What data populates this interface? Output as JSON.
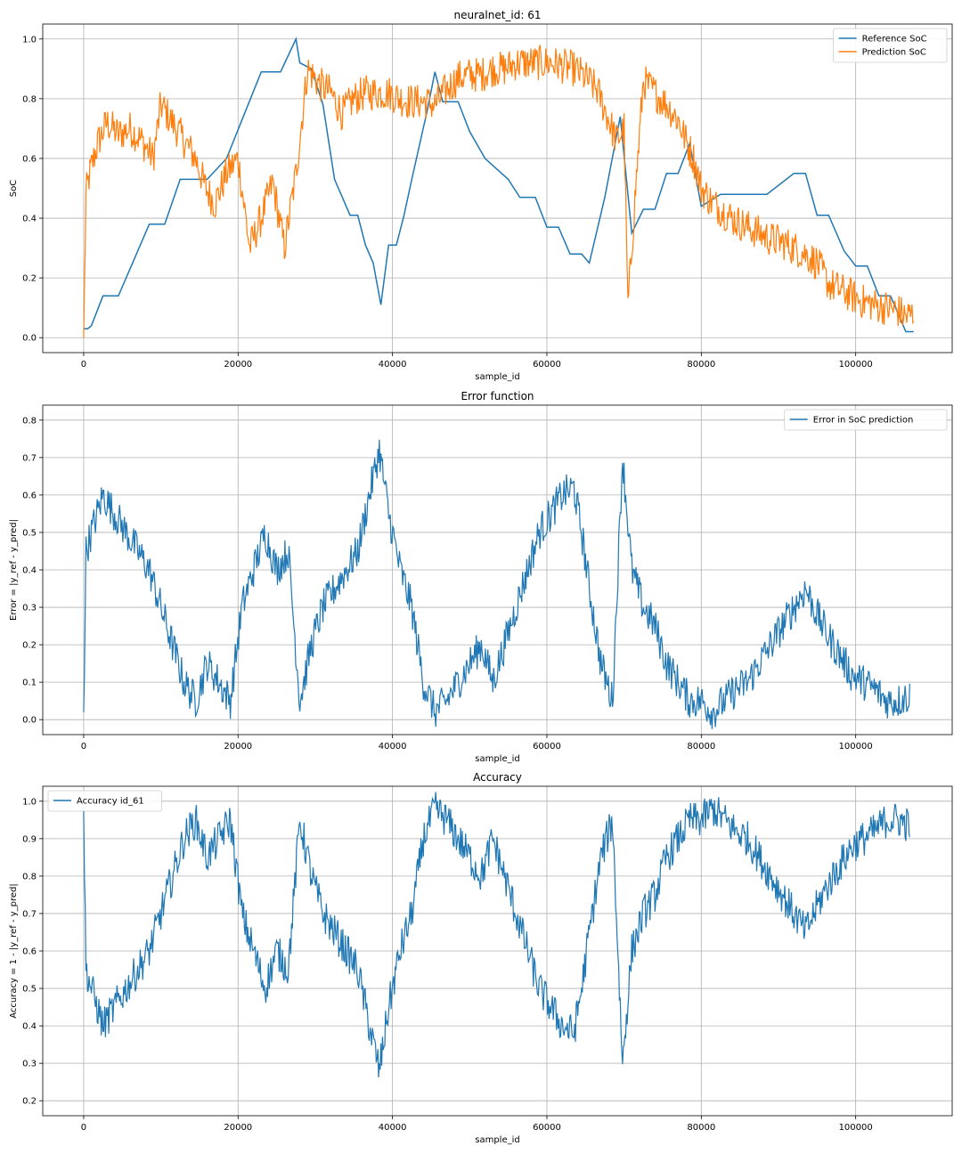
{
  "colors": {
    "reference": "#1f77b4",
    "prediction": "#ff7f0e",
    "grid": "#b0b0b0"
  },
  "chart_data": [
    {
      "type": "line",
      "title": "neuralnet_id: 61",
      "xlabel": "sample_id",
      "ylabel": "SoC",
      "xlim": [
        -5300,
        112500
      ],
      "ylim": [
        -0.05,
        1.05
      ],
      "xticks": [
        0,
        20000,
        40000,
        60000,
        80000,
        100000
      ],
      "xtick_labels": [
        "0",
        "20000",
        "40000",
        "60000",
        "80000",
        "100000"
      ],
      "yticks": [
        0.0,
        0.2,
        0.4,
        0.6,
        0.8,
        1.0
      ],
      "ytick_labels": [
        "0.0",
        "0.2",
        "0.4",
        "0.6",
        "0.8",
        "1.0"
      ],
      "grid": true,
      "legend": "top-right",
      "series": [
        {
          "name": "Reference SoC",
          "color": "#1f77b4",
          "x": [
            0,
            500,
            1000,
            2500,
            4500,
            8500,
            10500,
            12500,
            16000,
            18500,
            23000,
            25500,
            27500,
            28000,
            29500,
            31000,
            32500,
            34500,
            35500,
            36500,
            37500,
            38500,
            39500,
            40500,
            41500,
            42500,
            44500,
            45500,
            46500,
            48500,
            50000,
            52000,
            55000,
            56500,
            58500,
            60000,
            61500,
            63000,
            64500,
            65500,
            67500,
            69500,
            71000,
            72500,
            74000,
            75500,
            77000,
            78500,
            80000,
            82500,
            85500,
            88500,
            92000,
            93500,
            95000,
            96500,
            98500,
            100000,
            101500,
            103000,
            104500,
            105500,
            106500,
            107500
          ],
          "y": [
            0.03,
            0.03,
            0.04,
            0.14,
            0.14,
            0.38,
            0.38,
            0.53,
            0.53,
            0.6,
            0.89,
            0.89,
            1.0,
            0.92,
            0.9,
            0.78,
            0.53,
            0.41,
            0.41,
            0.31,
            0.25,
            0.11,
            0.31,
            0.31,
            0.41,
            0.53,
            0.76,
            0.89,
            0.79,
            0.79,
            0.69,
            0.6,
            0.53,
            0.47,
            0.47,
            0.37,
            0.37,
            0.28,
            0.28,
            0.25,
            0.47,
            0.74,
            0.35,
            0.43,
            0.43,
            0.55,
            0.55,
            0.65,
            0.44,
            0.48,
            0.48,
            0.48,
            0.55,
            0.55,
            0.41,
            0.41,
            0.29,
            0.24,
            0.24,
            0.14,
            0.14,
            0.08,
            0.02,
            0.02
          ]
        },
        {
          "name": "Prediction SoC",
          "color": "#ff7f0e",
          "x": [
            0,
            300,
            800,
            1800,
            3000,
            4500,
            6000,
            7500,
            9000,
            10000,
            11500,
            13000,
            14500,
            15800,
            17000,
            18500,
            20000,
            21500,
            23000,
            24500,
            26000,
            27500,
            29000,
            30500,
            32000,
            33500,
            35000,
            36500,
            38000,
            39500,
            41000,
            42500,
            44000,
            45500,
            47000,
            48500,
            50000,
            51500,
            53000,
            54500,
            56000,
            57500,
            59000,
            60500,
            62000,
            63500,
            65000,
            66500,
            68000,
            69000,
            70000,
            70500,
            71500,
            72500,
            74000,
            75500,
            77000,
            78000,
            79000,
            80000,
            81500,
            83000,
            84500,
            86000,
            87500,
            89000,
            90500,
            92000,
            93500,
            95000,
            96500,
            98000,
            99500,
            101000,
            102500,
            104000,
            105500,
            106500,
            107500
          ],
          "y": [
            0.0,
            0.48,
            0.55,
            0.65,
            0.72,
            0.68,
            0.7,
            0.66,
            0.6,
            0.78,
            0.72,
            0.66,
            0.6,
            0.5,
            0.45,
            0.55,
            0.6,
            0.3,
            0.4,
            0.52,
            0.3,
            0.55,
            0.9,
            0.85,
            0.82,
            0.75,
            0.8,
            0.82,
            0.82,
            0.82,
            0.8,
            0.79,
            0.79,
            0.78,
            0.83,
            0.87,
            0.88,
            0.88,
            0.9,
            0.9,
            0.92,
            0.92,
            0.92,
            0.92,
            0.91,
            0.9,
            0.87,
            0.83,
            0.73,
            0.66,
            0.7,
            0.1,
            0.5,
            0.86,
            0.82,
            0.78,
            0.73,
            0.66,
            0.6,
            0.5,
            0.45,
            0.42,
            0.39,
            0.37,
            0.35,
            0.33,
            0.32,
            0.3,
            0.28,
            0.25,
            0.18,
            0.16,
            0.14,
            0.12,
            0.11,
            0.1,
            0.09,
            0.07,
            0.08
          ]
        }
      ]
    },
    {
      "type": "line",
      "title": "Error function",
      "xlabel": "sample_id",
      "ylabel": "Error = |y_ref - y_pred|",
      "xlim": [
        -5300,
        112500
      ],
      "ylim": [
        -0.04,
        0.84
      ],
      "xticks": [
        0,
        20000,
        40000,
        60000,
        80000,
        100000
      ],
      "xtick_labels": [
        "0",
        "20000",
        "40000",
        "60000",
        "80000",
        "100000"
      ],
      "yticks": [
        0.0,
        0.1,
        0.2,
        0.3,
        0.4,
        0.5,
        0.6,
        0.7,
        0.8
      ],
      "ytick_labels": [
        "0.0",
        "0.1",
        "0.2",
        "0.3",
        "0.4",
        "0.5",
        "0.6",
        "0.7",
        "0.8"
      ],
      "grid": true,
      "legend": "top-right",
      "series": [
        {
          "name": "Error in SoC prediction",
          "color": "#1f77b4",
          "x": [
            0,
            300,
            1000,
            2500,
            4000,
            5500,
            7000,
            8500,
            10000,
            11500,
            13000,
            14500,
            16000,
            17500,
            19000,
            20500,
            22000,
            23500,
            25000,
            26500,
            28000,
            29500,
            31000,
            32500,
            34000,
            35500,
            37000,
            38300,
            39500,
            41000,
            42500,
            44000,
            45500,
            47000,
            48500,
            50000,
            51500,
            53000,
            54500,
            56000,
            57500,
            59000,
            60500,
            62000,
            63500,
            64500,
            65500,
            67000,
            68500,
            69800,
            71000,
            72500,
            74000,
            75500,
            77000,
            78500,
            80000,
            81500,
            83000,
            84500,
            86000,
            87500,
            89000,
            90500,
            92000,
            93500,
            95000,
            96500,
            98000,
            99500,
            101000,
            102500,
            104000,
            105500,
            106500,
            107000
          ],
          "y": [
            0.02,
            0.45,
            0.5,
            0.6,
            0.55,
            0.5,
            0.45,
            0.4,
            0.3,
            0.2,
            0.1,
            0.05,
            0.15,
            0.1,
            0.05,
            0.3,
            0.4,
            0.5,
            0.4,
            0.45,
            0.05,
            0.2,
            0.3,
            0.35,
            0.4,
            0.45,
            0.6,
            0.72,
            0.55,
            0.4,
            0.3,
            0.1,
            0.02,
            0.05,
            0.1,
            0.15,
            0.2,
            0.1,
            0.2,
            0.3,
            0.4,
            0.5,
            0.55,
            0.6,
            0.62,
            0.5,
            0.35,
            0.15,
            0.05,
            0.7,
            0.4,
            0.3,
            0.25,
            0.15,
            0.1,
            0.05,
            0.05,
            0.02,
            0.05,
            0.08,
            0.1,
            0.15,
            0.2,
            0.25,
            0.3,
            0.35,
            0.28,
            0.22,
            0.17,
            0.12,
            0.1,
            0.08,
            0.05,
            0.05,
            0.06,
            0.06
          ]
        }
      ]
    },
    {
      "type": "line",
      "title": "Accuracy",
      "xlabel": "sample_id",
      "ylabel": "Accuracy = 1 - |y_ref - y_pred|",
      "xlim": [
        -5300,
        112500
      ],
      "ylim": [
        0.16,
        1.04
      ],
      "xticks": [
        0,
        20000,
        40000,
        60000,
        80000,
        100000
      ],
      "xtick_labels": [
        "0",
        "20000",
        "40000",
        "60000",
        "80000",
        "100000"
      ],
      "yticks": [
        0.2,
        0.3,
        0.4,
        0.5,
        0.6,
        0.7,
        0.8,
        0.9,
        1.0
      ],
      "ytick_labels": [
        "0.2",
        "0.3",
        "0.4",
        "0.5",
        "0.6",
        "0.7",
        "0.8",
        "0.9",
        "1.0"
      ],
      "grid": true,
      "legend": "top-left",
      "series": [
        {
          "name": "Accuracy id_61",
          "color": "#1f77b4",
          "x": [
            0,
            300,
            1000,
            2500,
            4000,
            5500,
            7000,
            8500,
            10000,
            11500,
            13000,
            14500,
            16000,
            17500,
            19000,
            20500,
            22000,
            23500,
            25000,
            26500,
            28000,
            29500,
            31000,
            32500,
            34000,
            35500,
            37000,
            38300,
            39500,
            41000,
            42500,
            44000,
            45500,
            47000,
            48500,
            50000,
            51500,
            53000,
            54500,
            56000,
            57500,
            59000,
            60500,
            62000,
            63500,
            64500,
            65500,
            67000,
            68500,
            69800,
            71000,
            72500,
            74000,
            75500,
            77000,
            78500,
            80000,
            81500,
            83000,
            84500,
            86000,
            87500,
            89000,
            90500,
            92000,
            93500,
            95000,
            96500,
            98000,
            99500,
            101000,
            102500,
            104000,
            105500,
            106500,
            107000
          ],
          "y": [
            0.98,
            0.55,
            0.5,
            0.4,
            0.45,
            0.5,
            0.55,
            0.6,
            0.7,
            0.8,
            0.9,
            0.95,
            0.85,
            0.9,
            0.95,
            0.7,
            0.6,
            0.5,
            0.6,
            0.55,
            0.95,
            0.8,
            0.7,
            0.65,
            0.6,
            0.55,
            0.4,
            0.28,
            0.45,
            0.6,
            0.7,
            0.9,
            0.98,
            0.95,
            0.9,
            0.85,
            0.8,
            0.9,
            0.8,
            0.7,
            0.6,
            0.5,
            0.45,
            0.4,
            0.38,
            0.5,
            0.65,
            0.85,
            0.95,
            0.3,
            0.6,
            0.7,
            0.75,
            0.85,
            0.9,
            0.95,
            0.95,
            0.98,
            0.95,
            0.92,
            0.9,
            0.85,
            0.8,
            0.75,
            0.7,
            0.65,
            0.72,
            0.78,
            0.83,
            0.88,
            0.9,
            0.92,
            0.95,
            0.95,
            0.94,
            0.94
          ]
        }
      ]
    }
  ]
}
